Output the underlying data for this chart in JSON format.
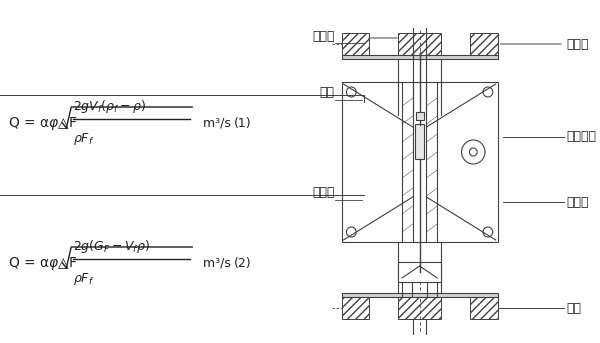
{
  "bg_color": "#ffffff",
  "line_color": "#404040",
  "hatch_color": "#606060",
  "fig_width": 6.0,
  "fig_height": 3.43,
  "labels": {
    "xianshiqi": "显示器",
    "celianguan": "测量管",
    "fuzi": "浮子",
    "suidong": "随动系统",
    "daoxiangguan": "导向管",
    "zhuixingguan": "锥形管",
    "luomao": "卡箍"
  },
  "formula1": "Q = αφ△F $\\sqrt{\\dfrac{2gV_f(\\rho_f - \\rho)}{\\rho F_f}}$ m³/s  (1)",
  "formula2": "Q = αφ△F $\\sqrt{\\dfrac{2g(G_F - V_f\\rho)}{\\rho F_f}}$ m³/s  (2)"
}
